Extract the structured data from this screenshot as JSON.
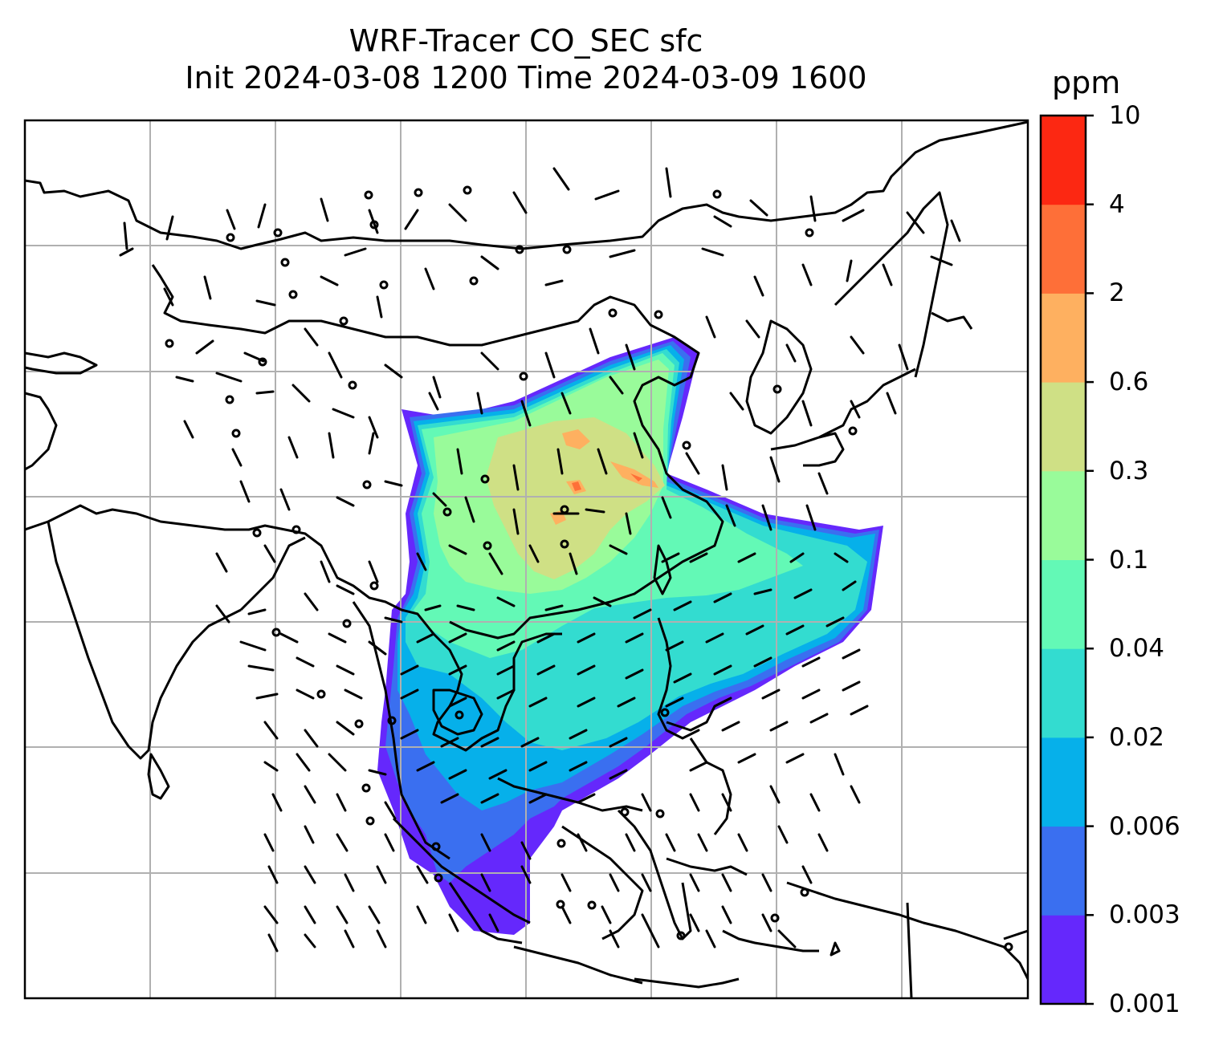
{
  "title": {
    "line1": "WRF-Tracer CO_SEC sfc",
    "line2": "Init 2024-03-08 1200 Time 2024-03-09 1600"
  },
  "colorbar": {
    "unit": "ppm",
    "levels": [
      "0.001",
      "0.003",
      "0.006",
      "0.02",
      "0.04",
      "0.1",
      "0.3",
      "0.6",
      "2",
      "4",
      "10"
    ],
    "colors": [
      "#6528fc",
      "#3a6ff0",
      "#06b0ea",
      "#33dcd0",
      "#63f9b6",
      "#99fb9a",
      "#cfe085",
      "#feb060",
      "#fe6f38",
      "#fc2812"
    ]
  },
  "map": {
    "graticule": true,
    "coastlines": true,
    "wind_barbs": true
  }
}
